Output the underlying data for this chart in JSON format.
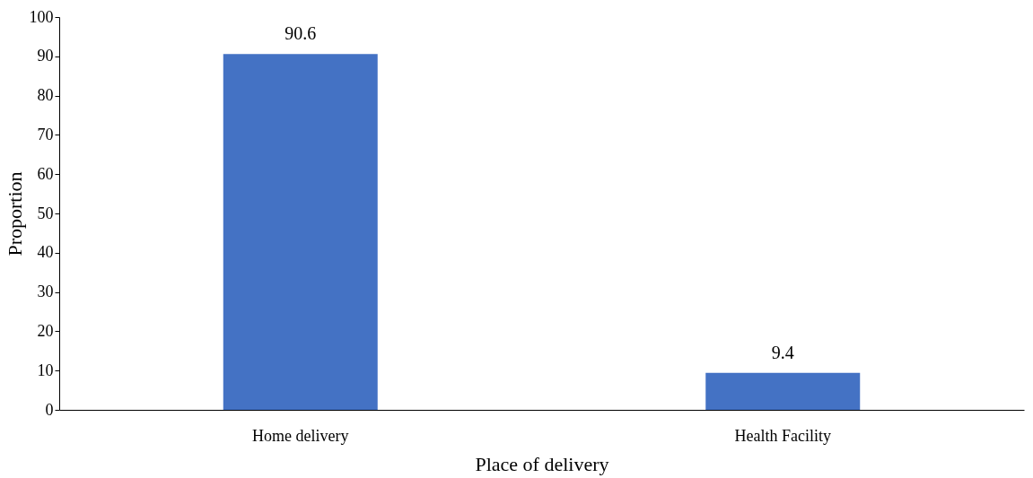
{
  "chart_data": {
    "type": "bar",
    "xlabel": "Place of delivery",
    "ylabel": "Proportion",
    "categories": [
      "Home delivery",
      "Health Facility"
    ],
    "values": [
      90.6,
      9.4
    ],
    "color": "#4472c4",
    "ylim": [
      0,
      100
    ],
    "yticks": [
      0,
      10,
      20,
      30,
      40,
      50,
      60,
      70,
      80,
      90,
      100
    ],
    "data_labels": true,
    "grid": false
  }
}
